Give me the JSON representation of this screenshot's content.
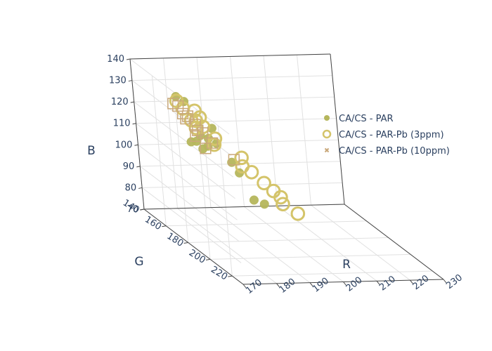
{
  "chart_data": {
    "type": "scatter3d",
    "axes": {
      "x": {
        "label": "R",
        "range": [
          170,
          230
        ],
        "ticks": [
          170,
          180,
          190,
          200,
          210,
          220,
          230
        ]
      },
      "y": {
        "label": "G",
        "range": [
          140,
          230
        ],
        "ticks": [
          140,
          160,
          180,
          200,
          220
        ]
      },
      "z": {
        "label": "B",
        "range": [
          70,
          140
        ],
        "ticks": [
          70,
          80,
          90,
          100,
          110,
          120,
          130,
          140
        ]
      }
    },
    "grid": true,
    "legend_position": "right",
    "series": [
      {
        "name": "CA/CS - PAR",
        "marker": "filled-circle",
        "color": "#b5b65c",
        "points_screen_estimated": true,
        "points": [
          {
            "x": 178,
            "y": 155,
            "z": 128
          },
          {
            "x": 180,
            "y": 156,
            "z": 126
          },
          {
            "x": 187,
            "y": 158,
            "z": 114
          },
          {
            "x": 184,
            "y": 156,
            "z": 110
          },
          {
            "x": 186,
            "y": 157,
            "z": 109
          },
          {
            "x": 188,
            "y": 158,
            "z": 107
          },
          {
            "x": 183,
            "y": 155,
            "z": 107
          },
          {
            "x": 182,
            "y": 153,
            "z": 106
          },
          {
            "x": 186,
            "y": 156,
            "z": 105
          },
          {
            "x": 185,
            "y": 154,
            "z": 103
          },
          {
            "x": 192,
            "y": 158,
            "z": 98
          },
          {
            "x": 194,
            "y": 158,
            "z": 93
          },
          {
            "x": 197,
            "y": 160,
            "z": 81
          },
          {
            "x": 200,
            "y": 160,
            "z": 79
          }
        ]
      },
      {
        "name": "CA/CS - PAR-Pb (3ppm)",
        "marker": "open-circle",
        "color": "#d4c46a",
        "points": [
          {
            "x": 172,
            "y": 175,
            "z": 134
          },
          {
            "x": 174,
            "y": 174,
            "z": 130
          },
          {
            "x": 178,
            "y": 172,
            "z": 128
          },
          {
            "x": 180,
            "y": 170,
            "z": 124
          },
          {
            "x": 178,
            "y": 168,
            "z": 122
          },
          {
            "x": 180,
            "y": 166,
            "z": 121
          },
          {
            "x": 178,
            "y": 172,
            "z": 120
          },
          {
            "x": 182,
            "y": 166,
            "z": 118
          },
          {
            "x": 184,
            "y": 170,
            "z": 114
          },
          {
            "x": 183,
            "y": 172,
            "z": 112
          },
          {
            "x": 192,
            "y": 168,
            "z": 104
          },
          {
            "x": 192,
            "y": 168,
            "z": 100
          },
          {
            "x": 194,
            "y": 170,
            "z": 98
          },
          {
            "x": 198,
            "y": 168,
            "z": 92
          },
          {
            "x": 200,
            "y": 170,
            "z": 89
          },
          {
            "x": 202,
            "y": 170,
            "z": 86
          },
          {
            "x": 200,
            "y": 178,
            "z": 86
          },
          {
            "x": 203,
            "y": 182,
            "z": 83
          }
        ]
      },
      {
        "name": "CA/CS - PAR-Pb (10ppm)",
        "marker": "open-square",
        "color": "#c9a87a",
        "points": [
          {
            "x": 170,
            "y": 178,
            "z": 134
          },
          {
            "x": 172,
            "y": 176,
            "z": 132
          },
          {
            "x": 172,
            "y": 180,
            "z": 130
          },
          {
            "x": 174,
            "y": 178,
            "z": 128
          },
          {
            "x": 174,
            "y": 176,
            "z": 126
          },
          {
            "x": 176,
            "y": 178,
            "z": 124
          },
          {
            "x": 176,
            "y": 180,
            "z": 122
          },
          {
            "x": 178,
            "y": 178,
            "z": 120
          },
          {
            "x": 174,
            "y": 184,
            "z": 121
          },
          {
            "x": 176,
            "y": 186,
            "z": 116
          },
          {
            "x": 180,
            "y": 180,
            "z": 116
          },
          {
            "x": 186,
            "y": 180,
            "z": 108
          }
        ]
      }
    ]
  }
}
